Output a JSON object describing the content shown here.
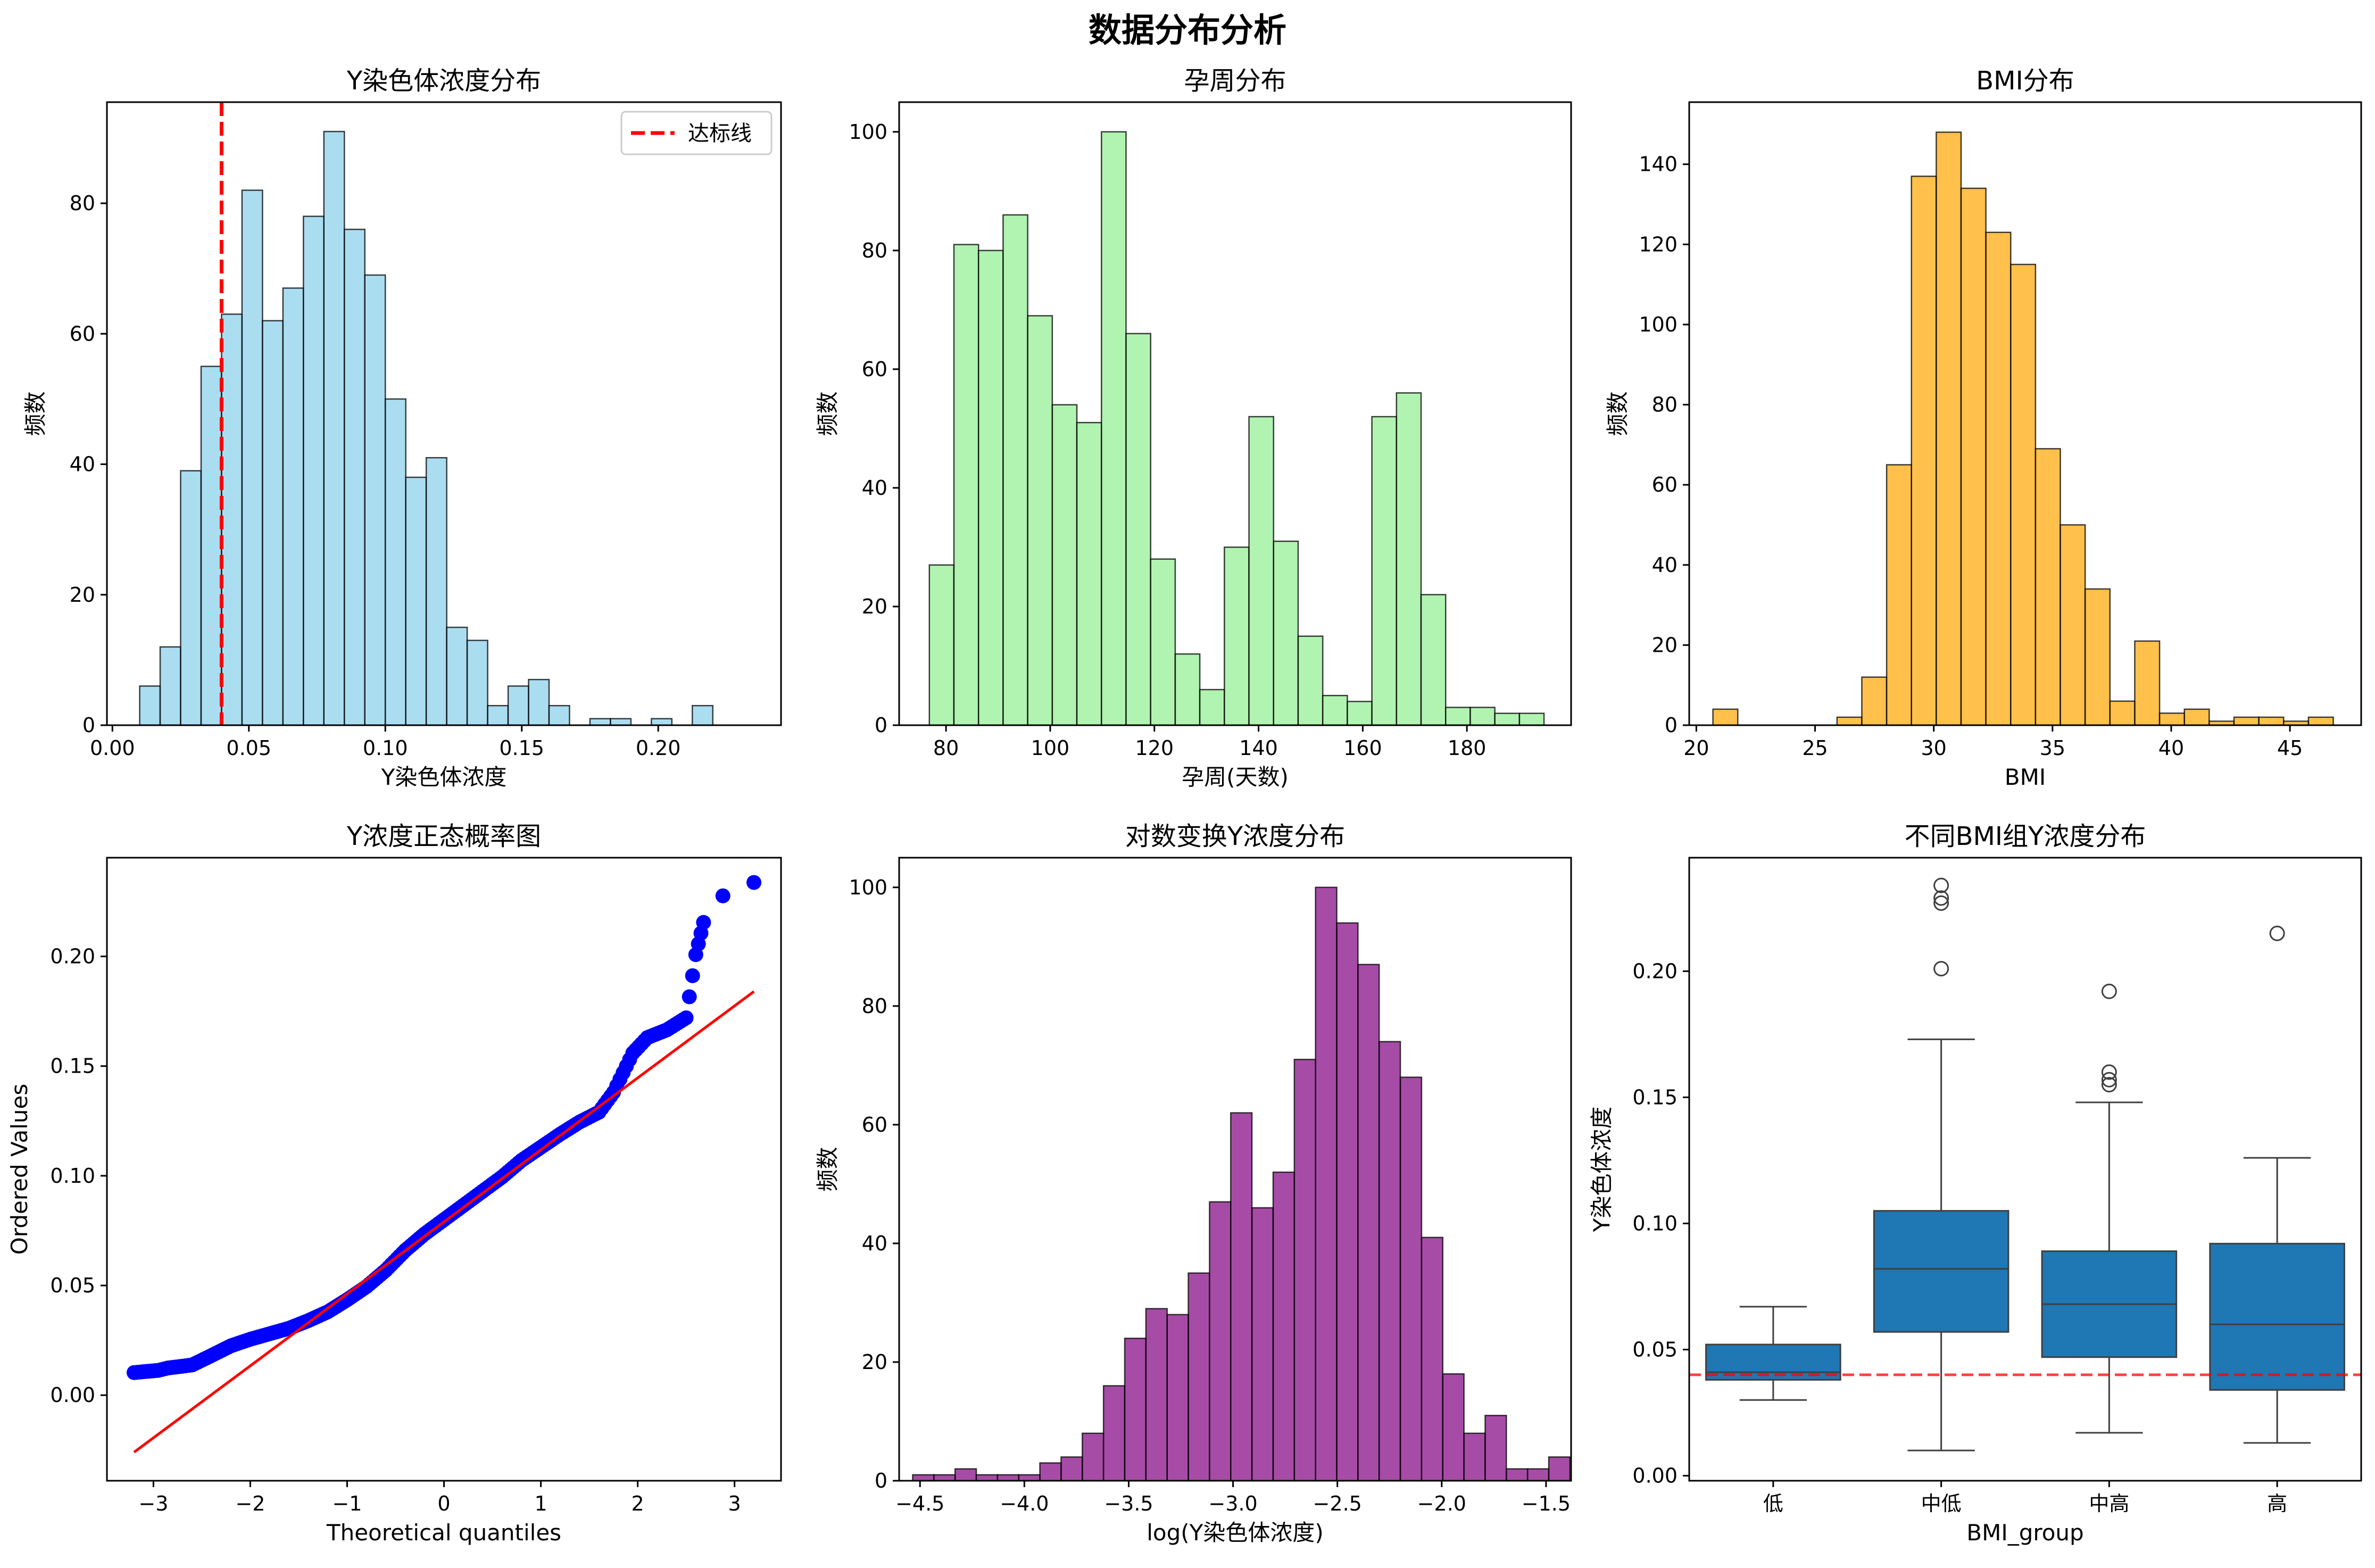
{
  "figure": {
    "suptitle": "数据分布分析"
  },
  "colors": {
    "hist_y": "#87CEEB",
    "hist_week": "#90EE90",
    "hist_bmi": "#FFA500",
    "hist_log": "#800080",
    "box": "#1f77b4",
    "threshold": "#ff0000",
    "qq_points": "#0000ff",
    "qq_line": "#ff0000"
  },
  "chart_data": [
    {
      "id": "y_hist",
      "type": "bar",
      "title": "Y染色体浓度分布",
      "xlabel": "Y染色体浓度",
      "ylabel": "频数",
      "xlim": [
        -0.002,
        0.245
      ],
      "ylim": [
        0,
        95.5
      ],
      "xticks": [
        0.0,
        0.05,
        0.1,
        0.15,
        0.2
      ],
      "xtick_labels": [
        "0.00",
        "0.05",
        "0.10",
        "0.15",
        "0.20"
      ],
      "yticks": [
        0,
        20,
        40,
        60,
        80
      ],
      "bin_start": 0.01,
      "bin_width": 0.0075,
      "counts": [
        6,
        12,
        39,
        55,
        63,
        82,
        62,
        67,
        78,
        91,
        76,
        69,
        50,
        38,
        41,
        15,
        13,
        3,
        6,
        7,
        3,
        0,
        1,
        1,
        0,
        1,
        0,
        3
      ],
      "threshold": {
        "value": 0.04,
        "label": "达标线"
      },
      "legend": "top-right"
    },
    {
      "id": "week_hist",
      "type": "bar",
      "title": "孕周分布",
      "xlabel": "孕周(天数)",
      "ylabel": "频数",
      "xlim": [
        71,
        200
      ],
      "ylim": [
        0,
        105
      ],
      "xticks": [
        80,
        100,
        120,
        140,
        160,
        180
      ],
      "xtick_labels": [
        "80",
        "100",
        "120",
        "140",
        "160",
        "180"
      ],
      "yticks": [
        0,
        20,
        40,
        60,
        80,
        100
      ],
      "bin_start": 76.8,
      "bin_width": 4.72,
      "counts": [
        27,
        81,
        80,
        86,
        69,
        54,
        51,
        100,
        66,
        28,
        12,
        6,
        30,
        52,
        31,
        15,
        5,
        4,
        52,
        56,
        22,
        3,
        3,
        2,
        2
      ]
    },
    {
      "id": "bmi_hist",
      "type": "bar",
      "title": "BMI分布",
      "xlabel": "BMI",
      "ylabel": "频数",
      "xlim": [
        19.7,
        48.0
      ],
      "ylim": [
        0,
        155.5
      ],
      "xticks": [
        20,
        25,
        30,
        35,
        40,
        45
      ],
      "xtick_labels": [
        "20",
        "25",
        "30",
        "35",
        "40",
        "45"
      ],
      "yticks": [
        0,
        20,
        40,
        60,
        80,
        100,
        120,
        140
      ],
      "bin_start": 20.7,
      "bin_width": 1.045,
      "counts": [
        4,
        0,
        0,
        0,
        0,
        2,
        12,
        65,
        137,
        148,
        134,
        123,
        115,
        69,
        50,
        34,
        6,
        21,
        3,
        4,
        1,
        2,
        2,
        1,
        2
      ]
    },
    {
      "id": "qq_plot",
      "type": "scatter",
      "title": "Y浓度正态概率图",
      "xlabel": "Theoretical quantiles",
      "ylabel": "Ordered Values",
      "xlim": [
        -3.48,
        3.48
      ],
      "ylim": [
        -0.039,
        0.245
      ],
      "xticks": [
        -3,
        -2,
        -1,
        0,
        1,
        2,
        3
      ],
      "xtick_labels": [
        "−3",
        "−2",
        "−1",
        "0",
        "1",
        "2",
        "3"
      ],
      "yticks": [
        0.0,
        0.05,
        0.1,
        0.15,
        0.2
      ],
      "ytick_labels": [
        "0.00",
        "0.05",
        "0.10",
        "0.15",
        "0.20"
      ],
      "points": [
        [
          -3.2,
          0.0103
        ],
        [
          -2.95,
          0.0113
        ],
        [
          -2.85,
          0.0124
        ],
        [
          -2.7,
          0.0132
        ],
        [
          -2.6,
          0.0138
        ],
        [
          -2.45,
          0.017
        ],
        [
          -2.2,
          0.0225
        ],
        [
          -2.0,
          0.0255
        ],
        [
          -1.8,
          0.028
        ],
        [
          -1.6,
          0.0305
        ],
        [
          -1.4,
          0.034
        ],
        [
          -1.2,
          0.038
        ],
        [
          -1.0,
          0.0435
        ],
        [
          -0.8,
          0.0495
        ],
        [
          -0.6,
          0.057
        ],
        [
          -0.4,
          0.066
        ],
        [
          -0.2,
          0.0735
        ],
        [
          0.0,
          0.08
        ],
        [
          0.2,
          0.0865
        ],
        [
          0.4,
          0.093
        ],
        [
          0.6,
          0.0995
        ],
        [
          0.8,
          0.107
        ],
        [
          1.0,
          0.113
        ],
        [
          1.2,
          0.119
        ],
        [
          1.4,
          0.1245
        ],
        [
          1.6,
          0.129
        ],
        [
          1.75,
          0.138
        ],
        [
          1.85,
          0.147
        ],
        [
          1.95,
          0.156
        ],
        [
          2.1,
          0.163
        ],
        [
          2.3,
          0.1665
        ],
        [
          2.5,
          0.172
        ],
        [
          2.6,
          0.2008
        ],
        [
          2.68,
          0.2155
        ],
        [
          2.88,
          0.2276
        ],
        [
          3.2,
          0.2337
        ]
      ],
      "fit_line": [
        [
          -3.2,
          -0.026
        ],
        [
          3.2,
          0.184
        ]
      ]
    },
    {
      "id": "log_hist",
      "type": "bar",
      "title": "对数变换Y浓度分布",
      "xlabel": "log(Y染色体浓度)",
      "ylabel": "频数",
      "xlim": [
        -4.6,
        -1.38
      ],
      "ylim": [
        0,
        105
      ],
      "xticks": [
        -4.5,
        -4.0,
        -3.5,
        -3.0,
        -2.5,
        -2.0,
        -1.5
      ],
      "xtick_labels": [
        "−4.5",
        "−4.0",
        "−3.5",
        "−3.0",
        "−2.5",
        "−2.0",
        "−1.5"
      ],
      "yticks": [
        0,
        20,
        40,
        60,
        80,
        100
      ],
      "bin_start": -4.535,
      "bin_width": 0.1016,
      "counts": [
        1,
        1,
        2,
        1,
        1,
        1,
        3,
        4,
        8,
        16,
        24,
        29,
        28,
        35,
        47,
        62,
        46,
        52,
        71,
        100,
        94,
        87,
        74,
        68,
        41,
        18,
        8,
        11,
        2,
        2,
        4
      ]
    },
    {
      "id": "bmi_box",
      "type": "box",
      "title": "不同BMI组Y浓度分布",
      "xlabel": "BMI_group",
      "ylabel": "Y染色体浓度",
      "ylim": [
        -0.002,
        0.245
      ],
      "yticks": [
        0.0,
        0.05,
        0.1,
        0.15,
        0.2
      ],
      "ytick_labels": [
        "0.00",
        "0.05",
        "0.10",
        "0.15",
        "0.20"
      ],
      "categories": [
        "低",
        "中低",
        "中高",
        "高"
      ],
      "boxes": [
        {
          "whisker_low": 0.03,
          "q1": 0.038,
          "median": 0.041,
          "q3": 0.052,
          "whisker_high": 0.067,
          "outliers": []
        },
        {
          "whisker_low": 0.01,
          "q1": 0.057,
          "median": 0.082,
          "q3": 0.105,
          "whisker_high": 0.173,
          "outliers": [
            0.201,
            0.227,
            0.229,
            0.234
          ]
        },
        {
          "whisker_low": 0.017,
          "q1": 0.047,
          "median": 0.068,
          "q3": 0.089,
          "whisker_high": 0.148,
          "outliers": [
            0.155,
            0.157,
            0.16,
            0.192
          ]
        },
        {
          "whisker_low": 0.013,
          "q1": 0.034,
          "median": 0.06,
          "q3": 0.092,
          "whisker_high": 0.126,
          "outliers": [
            0.215
          ]
        }
      ],
      "threshold": 0.04
    }
  ]
}
